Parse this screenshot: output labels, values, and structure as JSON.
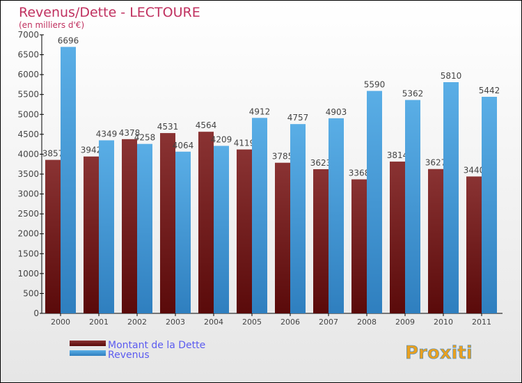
{
  "chart_data": {
    "type": "bar",
    "title": "Revenus/Dette - LECTOURE",
    "subtitle": "(en milliers d'€)",
    "xlabel": "",
    "ylabel": "",
    "ylim": [
      0,
      7000
    ],
    "yticks": [
      0,
      500,
      1000,
      1500,
      2000,
      2500,
      3000,
      3500,
      4000,
      4500,
      5000,
      5500,
      6000,
      6500,
      7000
    ],
    "categories": [
      "2000",
      "2001",
      "2002",
      "2003",
      "2004",
      "2005",
      "2006",
      "2007",
      "2008",
      "2009",
      "2010",
      "2011"
    ],
    "series": [
      {
        "name": "Montant de la Dette",
        "color": "#7a1c1c",
        "values": [
          3857,
          3942,
          4378,
          4531,
          4564,
          4119,
          3785,
          3623,
          3368,
          3814,
          3627,
          3440
        ]
      },
      {
        "name": "Revenus",
        "color": "#4a9fde",
        "values": [
          6696,
          4349,
          4258,
          4064,
          4209,
          4912,
          4757,
          4903,
          5590,
          5362,
          5810,
          5442
        ]
      }
    ],
    "legend_position": "bottom-left",
    "grid": false
  },
  "logo": "Proxiti"
}
